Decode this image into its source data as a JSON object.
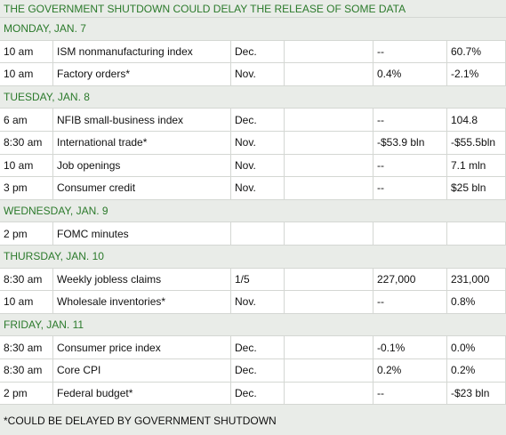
{
  "title": "THE GOVERNMENT SHUTDOWN COULD DELAY THE RELEASE OF SOME DATA",
  "sections": [
    {
      "day": "MONDAY, JAN. 7",
      "rows": [
        [
          "10 am",
          "ISM nonmanufacturing index",
          "Dec.",
          "--",
          "60.7%"
        ],
        [
          "10 am",
          "Factory orders*",
          "Nov.",
          "0.4%",
          "-2.1%"
        ]
      ]
    },
    {
      "day": "TUESDAY, JAN. 8",
      "rows": [
        [
          "6 am",
          "NFIB small-business index",
          "Dec.",
          "--",
          "104.8"
        ],
        [
          "8:30 am",
          "International trade*",
          "Nov.",
          "-$53.9 bln",
          "-$55.5bln"
        ],
        [
          "10 am",
          "Job openings",
          "Nov.",
          "--",
          "7.1 mln"
        ],
        [
          "3 pm",
          "Consumer credit",
          "Nov.",
          "--",
          "$25 bln"
        ]
      ]
    },
    {
      "day": "WEDNESDAY, JAN. 9",
      "rows": [
        [
          "2 pm",
          "FOMC minutes"
        ]
      ]
    },
    {
      "day": "THURSDAY, JAN. 10",
      "rows": [
        [
          "8:30 am",
          "Weekly jobless claims",
          "1/5",
          "227,000",
          "231,000"
        ],
        [
          "10 am",
          "Wholesale inventories*",
          "Nov.",
          "--",
          "0.8%"
        ]
      ]
    },
    {
      "day": "FRIDAY, JAN. 11",
      "rows": [
        [
          "8:30 am",
          "Consumer price index",
          "Dec.",
          "-0.1%",
          "0.0%"
        ],
        [
          "8:30 am",
          "Core CPI",
          "Dec.",
          "0.2%",
          "0.2%"
        ],
        [
          "2 pm",
          "Federal budget*",
          "Dec.",
          "--",
          "-$23 bln"
        ]
      ]
    }
  ],
  "footnote": "*COULD BE DELAYED BY GOVERNMENT SHUTDOWN"
}
